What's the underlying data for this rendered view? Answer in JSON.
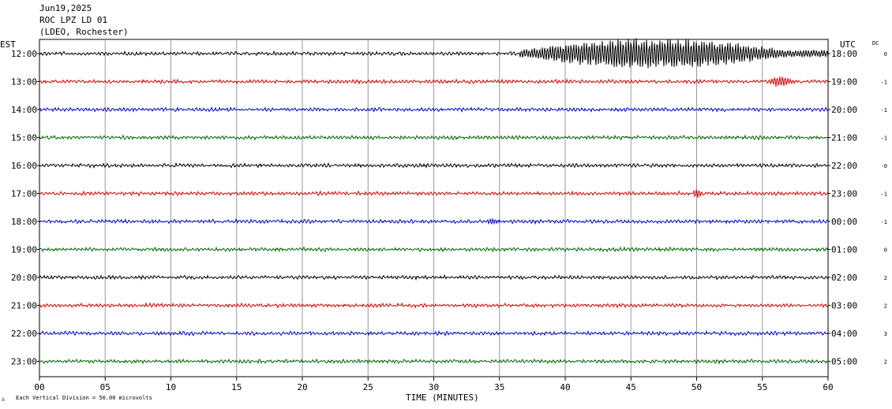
{
  "header": {
    "date": "Jun19,2025",
    "station": "ROC LPZ LD 01",
    "network": "(LDEO, Rochester)"
  },
  "chart_data": {
    "type": "line",
    "title": "",
    "left_axis_label": "EST",
    "right_axis_label": "UTC",
    "dc_label": "DC",
    "xlabel": "TIME (MINUTES)",
    "xlim": [
      0,
      60
    ],
    "x_ticks": [
      "00",
      "05",
      "10",
      "15",
      "20",
      "25",
      "30",
      "35",
      "40",
      "45",
      "50",
      "55",
      "60"
    ],
    "scale_note": "Each Vertical Division =   50.00 microvolts",
    "rows": [
      {
        "est": "12:00",
        "utc": "18:00",
        "dc": "0",
        "color": "#000000"
      },
      {
        "est": "13:00",
        "utc": "19:00",
        "dc": "-1",
        "color": "#d00000"
      },
      {
        "est": "14:00",
        "utc": "20:00",
        "dc": "-1",
        "color": "#0000c0"
      },
      {
        "est": "15:00",
        "utc": "21:00",
        "dc": "-1",
        "color": "#006000"
      },
      {
        "est": "16:00",
        "utc": "22:00",
        "dc": "-0",
        "color": "#000000"
      },
      {
        "est": "17:00",
        "utc": "23:00",
        "dc": "-1",
        "color": "#d00000"
      },
      {
        "est": "18:00",
        "utc": "00:00",
        "dc": "-1",
        "color": "#0000c0"
      },
      {
        "est": "19:00",
        "utc": "01:00",
        "dc": "0",
        "color": "#006000"
      },
      {
        "est": "20:00",
        "utc": "02:00",
        "dc": "2",
        "color": "#000000"
      },
      {
        "est": "21:00",
        "utc": "03:00",
        "dc": "2",
        "color": "#d00000"
      },
      {
        "est": "22:00",
        "utc": "04:00",
        "dc": "3",
        "color": "#0000c0"
      },
      {
        "est": "23:00",
        "utc": "05:00",
        "dc": "2",
        "color": "#006000"
      }
    ],
    "events": [
      {
        "row": 0,
        "start": 36.5,
        "end": 60,
        "amplitude": 3.0
      },
      {
        "row": 1,
        "start": 55.5,
        "end": 57.5,
        "amplitude": 0.9
      },
      {
        "row": 5,
        "start": 49.7,
        "end": 50.5,
        "amplitude": 0.8
      },
      {
        "row": 6,
        "start": 34.0,
        "end": 35.0,
        "amplitude": 0.4
      }
    ]
  }
}
